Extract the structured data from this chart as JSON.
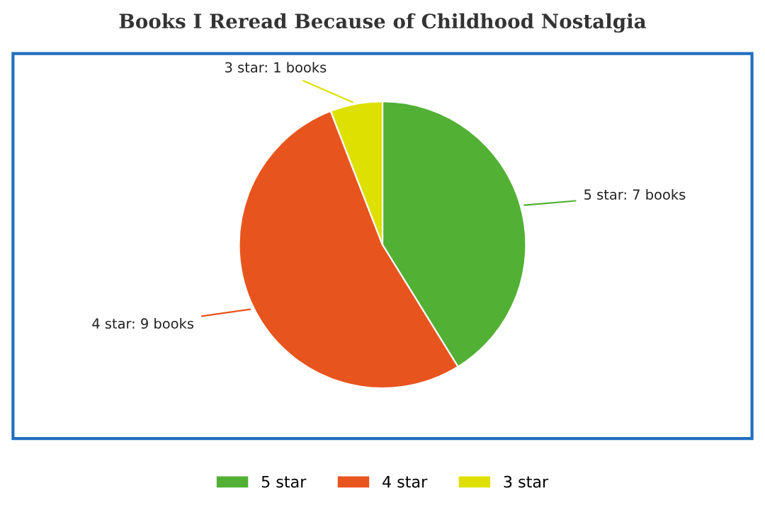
{
  "chart_data": {
    "type": "pie",
    "title": "Books I Reread Because of Childhood Nostalgia",
    "categories": [
      "5 star",
      "4 star",
      "3 star"
    ],
    "values": [
      7,
      9,
      1
    ],
    "colors": [
      "#52b035",
      "#e8541e",
      "#dde000"
    ],
    "value_labels": [
      "5 star: 7 books",
      "4 star: 9 books",
      "3 star: 1 books"
    ],
    "legend": "bottom"
  }
}
